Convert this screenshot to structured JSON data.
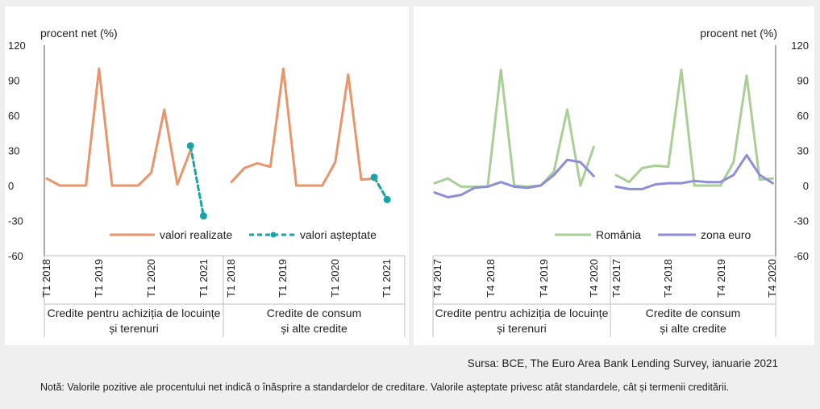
{
  "unit_label": "procent net (%)",
  "y_ticks": [
    "120",
    "90",
    "60",
    "30",
    "0",
    "-30",
    "-60"
  ],
  "colors": {
    "realized": "#e8956b",
    "expected": "#17a3a8",
    "romania": "#a9cf97",
    "euro": "#8c8fd8",
    "axis": "#555555",
    "grid": "#bfbfbf"
  },
  "source": "Sursa: BCE, The Euro Area Bank Lending Survey, ianuarie 2021",
  "note": "Notă: Valorile pozitive ale procentului net indică o înăsprire a standardelor de creditare. Valorile așteptate privesc atât standardele, cât și termenii creditării.",
  "chart_data": [
    {
      "type": "line",
      "ylim": [
        -60,
        120
      ],
      "y_ticks": [
        120,
        90,
        60,
        30,
        0,
        -30,
        -60
      ],
      "x_tick_labels": [
        "T1 2018",
        "T1 2019",
        "T1 2020",
        "T1 2021",
        "T1 2018",
        "T1 2019",
        "T1 2020",
        "T1 2021"
      ],
      "groups": [
        "Credite pentru achiziția de locuințe și terenuri",
        "Credite de consum și alte credite"
      ],
      "group_labels": [
        [
          "Credite pentru achiziția de locuințe",
          "și terenuri"
        ],
        [
          "Credite de consum",
          "și alte credite"
        ]
      ],
      "series": [
        {
          "name": "valori realizate",
          "values": [
            [
              6,
              0,
              0,
              0,
              100,
              0,
              0,
              0,
              11,
              65,
              1,
              30
            ],
            [
              3,
              15,
              19,
              16,
              100,
              0,
              0,
              0,
              20,
              95,
              5,
              6
            ]
          ]
        },
        {
          "name": "valori așteptate",
          "values": [
            {
              "x": [
                11,
                12
              ],
              "y": [
                34,
                -26
              ]
            },
            {
              "x": [
                11,
                12
              ],
              "y": [
                7,
                -12
              ]
            }
          ]
        }
      ]
    },
    {
      "type": "line",
      "ylim": [
        -60,
        120
      ],
      "y_ticks": [
        120,
        90,
        60,
        30,
        0,
        -30,
        -60
      ],
      "x_tick_labels": [
        "T4 2017",
        "T4 2018",
        "T4 2019",
        "T4 2020",
        "T4 2017",
        "T4 2018",
        "T4 2019",
        "T4 2020"
      ],
      "groups": [
        "Credite pentru achiziția de locuințe și terenuri",
        "Credite de consum și alte credite"
      ],
      "group_labels": [
        [
          "Credite pentru achiziția de locuințe",
          "și terenuri"
        ],
        [
          "Credite de consum",
          "și alte credite"
        ]
      ],
      "series": [
        {
          "name": "România",
          "values": [
            [
              2,
              6,
              -1,
              -1,
              -1,
              99,
              0,
              -1,
              0,
              12,
              65,
              0,
              33
            ],
            [
              9,
              3,
              15,
              17,
              16,
              99,
              0,
              0,
              0,
              20,
              94,
              5,
              6
            ]
          ]
        },
        {
          "name": "zona euro",
          "values": [
            [
              -6,
              -10,
              -8,
              -2,
              -1,
              3,
              -1,
              -2,
              0,
              9,
              22,
              20,
              8
            ],
            [
              -1,
              -3,
              -3,
              1,
              2,
              2,
              4,
              3,
              3,
              9,
              26,
              9,
              2
            ]
          ]
        }
      ]
    }
  ]
}
